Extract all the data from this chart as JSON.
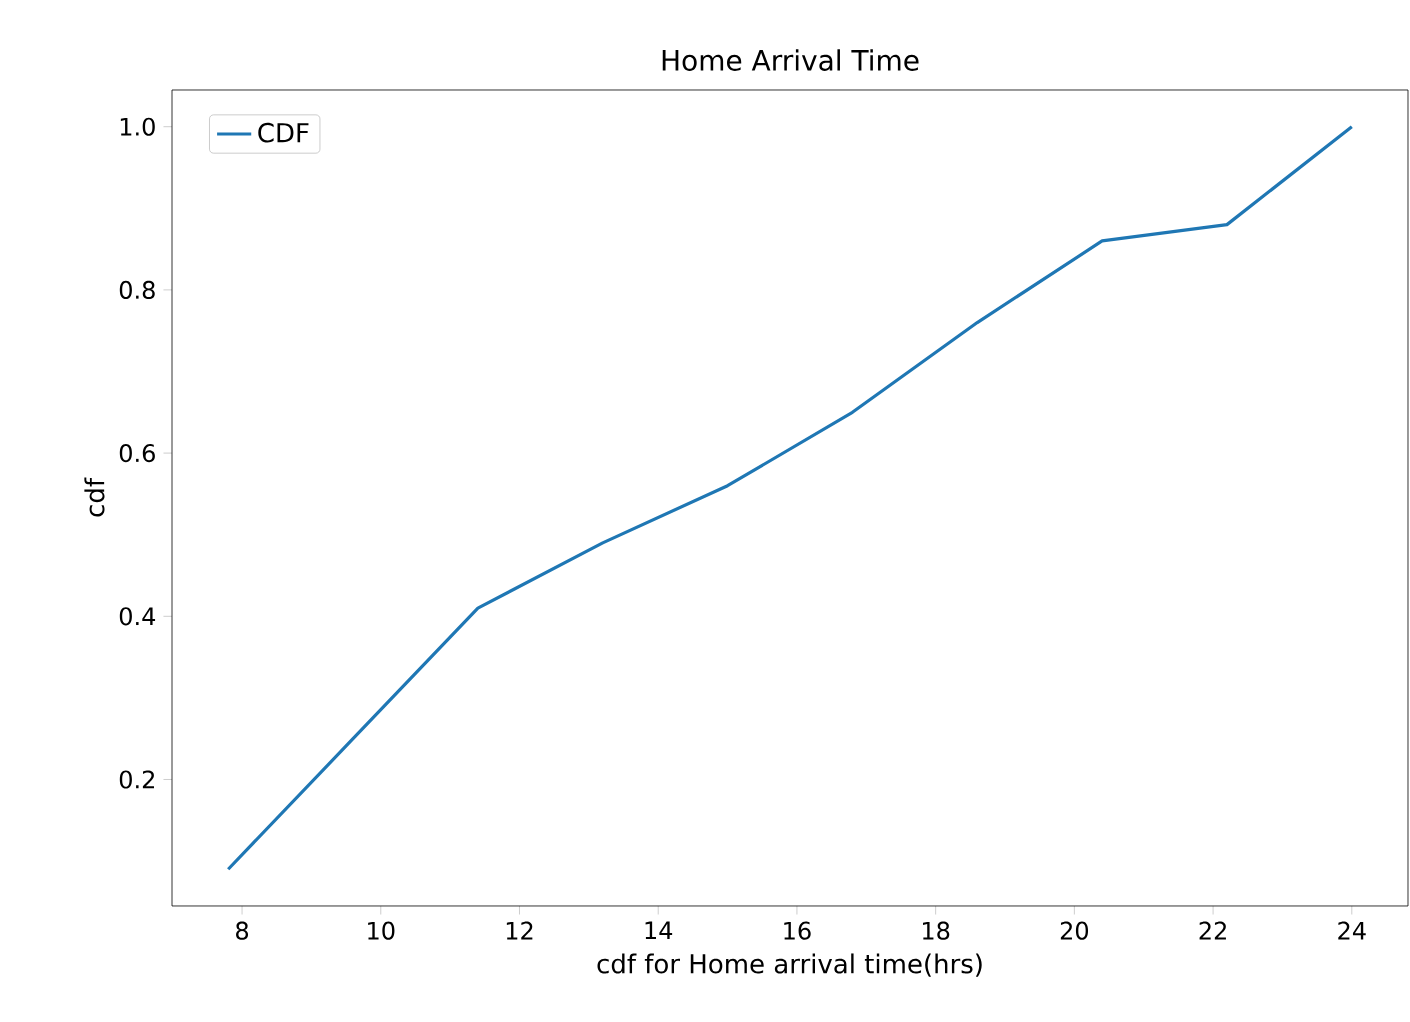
{
  "chart_data": {
    "type": "line",
    "title": "Home Arrival Time",
    "xlabel": "cdf for Home arrival time(hrs)",
    "ylabel": "cdf",
    "x": [
      7.8,
      9.6,
      11.4,
      13.2,
      15.0,
      16.8,
      18.6,
      20.4,
      22.2,
      24.0
    ],
    "series": [
      {
        "name": "CDF",
        "color": "#1f77b4",
        "values": [
          0.09,
          0.25,
          0.41,
          0.49,
          0.56,
          0.65,
          0.76,
          0.86,
          0.88,
          1.0
        ]
      }
    ],
    "xlim": [
      6.99,
      24.81
    ],
    "ylim": [
      0.045,
      1.045
    ],
    "xticks": [
      8,
      10,
      12,
      14,
      16,
      18,
      20,
      22,
      24
    ],
    "yticks": [
      {
        "value": 0.2,
        "label": "0.2"
      },
      {
        "value": 0.4,
        "label": "0.4"
      },
      {
        "value": 0.6,
        "label": "0.6"
      },
      {
        "value": 0.8,
        "label": "0.8"
      },
      {
        "value": 1.0,
        "label": "1.0"
      }
    ],
    "legend": "top left",
    "grid": false,
    "marker": "none",
    "line_style": "solid"
  }
}
